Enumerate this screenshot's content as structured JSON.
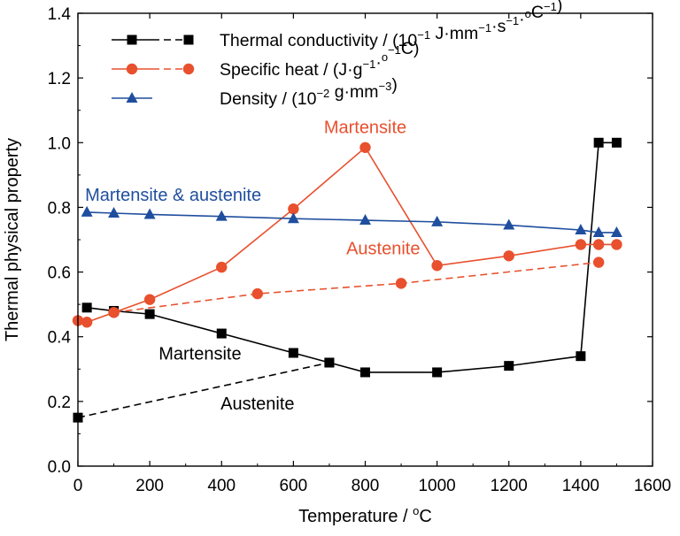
{
  "chart_data": {
    "type": "line",
    "xlabel_main": "Temperature / ",
    "xlabel_unit": "C",
    "ylabel": "Thermal physical property",
    "xlim": [
      0,
      1600
    ],
    "ylim": [
      0,
      1.4
    ],
    "xticks": [
      0,
      200,
      400,
      600,
      800,
      1000,
      1200,
      1400,
      1600
    ],
    "yticks": [
      0.0,
      0.2,
      0.4,
      0.6,
      0.8,
      1.0,
      1.2,
      1.4
    ],
    "xtick_labels": [
      "0",
      "200",
      "400",
      "600",
      "800",
      "1000",
      "1200",
      "1400",
      "1600"
    ],
    "ytick_labels": [
      "0.0",
      "0.2",
      "0.4",
      "0.6",
      "0.8",
      "1.0",
      "1.2",
      "1.4"
    ],
    "grid": false,
    "legend_position": "top-right",
    "legend": [
      {
        "text": "Thermal conductivity / (10",
        "sup1": "−1",
        "mid": " J·mm",
        "sup2": "−1",
        "mid2": "·s",
        "sup3": "−1",
        "mid3": "·",
        "sup4": "o",
        "end": "C",
        "sup5": "−1",
        "end2": ")",
        "color": "#000000",
        "marker": "square",
        "dashed_part": true
      },
      {
        "text": "Specific heat / (J·g",
        "sup1": "−1",
        "mid": "·",
        "sup2": "o",
        "end": "C",
        "sup3": "−1",
        "end2": ")",
        "color": "#e8502e",
        "marker": "circle",
        "dashed_part": true
      },
      {
        "text": "Density / (10",
        "sup1": "−2",
        "mid": " g·mm",
        "sup2": "−3",
        "end": ")",
        "color": "#1f4e9e",
        "marker": "triangle",
        "dashed_part": false
      }
    ],
    "series": [
      {
        "key": "tc_martensite",
        "color": "#000000",
        "marker": "square",
        "dashed": false,
        "x": [
          25,
          100,
          200,
          400,
          600,
          700,
          800,
          1000,
          1200,
          1400,
          1450,
          1500
        ],
        "y": [
          0.49,
          0.48,
          0.47,
          0.41,
          0.35,
          0.32,
          0.29,
          0.29,
          0.31,
          0.34,
          1.0,
          1.0
        ]
      },
      {
        "key": "tc_austenite",
        "color": "#000000",
        "marker": "square",
        "dashed": true,
        "x": [
          0,
          700
        ],
        "y": [
          0.15,
          0.32
        ]
      },
      {
        "key": "cp_martensite",
        "color": "#e8502e",
        "marker": "circle",
        "dashed": false,
        "x": [
          0,
          25,
          100,
          200,
          400,
          600,
          800,
          1000,
          1200,
          1400,
          1450,
          1500
        ],
        "y": [
          0.45,
          0.445,
          0.475,
          0.515,
          0.615,
          0.795,
          0.985,
          0.62,
          0.65,
          0.685,
          0.685,
          0.685
        ]
      },
      {
        "key": "cp_austenite",
        "color": "#e8502e",
        "marker": "circle",
        "dashed": true,
        "x": [
          100,
          500,
          900,
          1450
        ],
        "y": [
          0.475,
          0.533,
          0.565,
          0.63
        ]
      },
      {
        "key": "density",
        "color": "#1f4e9e",
        "marker": "triangle",
        "dashed": false,
        "x": [
          25,
          100,
          200,
          400,
          600,
          800,
          1000,
          1200,
          1400,
          1450,
          1500
        ],
        "y": [
          0.785,
          0.782,
          0.778,
          0.772,
          0.765,
          0.76,
          0.755,
          0.745,
          0.73,
          0.722,
          0.722
        ]
      }
    ],
    "annotations": [
      {
        "text": "Martensite",
        "x": 800,
        "y": 1.03,
        "color": "#e8502e",
        "anchor": "middle"
      },
      {
        "text": "Martensite & austenite",
        "x": 20,
        "y": 0.82,
        "color": "#1f4e9e",
        "anchor": "start"
      },
      {
        "text": "Austenite",
        "x": 850,
        "y": 0.655,
        "color": "#e8502e",
        "anchor": "middle"
      },
      {
        "text": "Martensite",
        "x": 340,
        "y": 0.33,
        "color": "#000000",
        "anchor": "middle"
      },
      {
        "text": "Austenite",
        "x": 500,
        "y": 0.175,
        "color": "#000000",
        "anchor": "middle"
      }
    ]
  }
}
